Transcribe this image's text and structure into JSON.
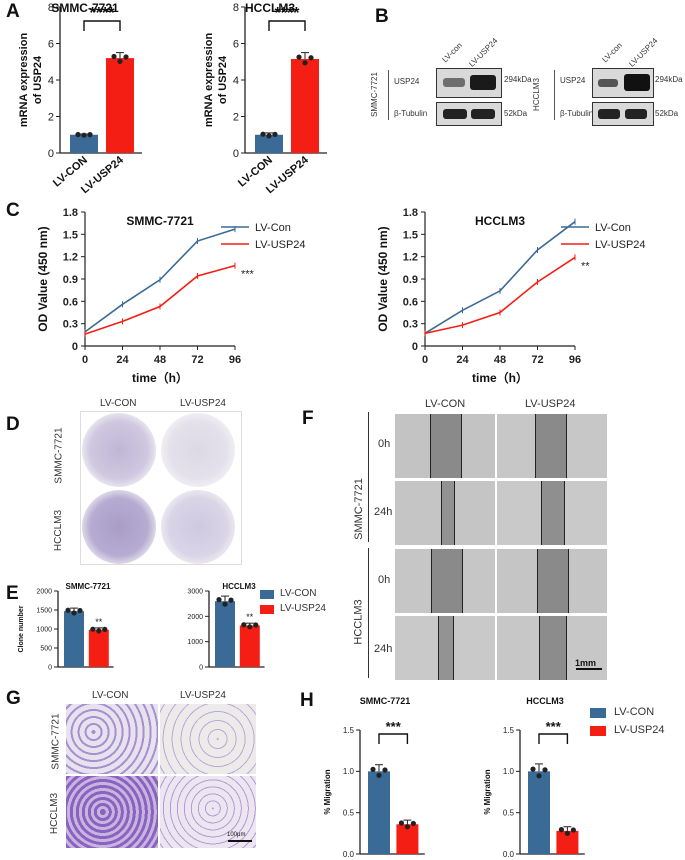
{
  "panels": {
    "A": "A",
    "B": "B",
    "C": "C",
    "D": "D",
    "E": "E",
    "F": "F",
    "G": "G",
    "H": "H"
  },
  "colors": {
    "con": "#3a6a96",
    "usp": "#f41e14"
  },
  "panelA": {
    "ylabel_line1": "mRNA expression",
    "ylabel_line2": "of USP24",
    "sig": "****",
    "yticks": [
      "0",
      "2",
      "4",
      "6",
      "8"
    ],
    "charts": [
      {
        "title": "SMMC-7721",
        "categories": [
          "LV-CON",
          "LV-USP24"
        ],
        "values": [
          1.0,
          5.2
        ],
        "err": [
          0.04,
          0.3
        ],
        "ylim": [
          0,
          8
        ]
      },
      {
        "title": "HCCLM3",
        "categories": [
          "LV-CON",
          "LV-USP24"
        ],
        "values": [
          1.0,
          5.15
        ],
        "err": [
          0.1,
          0.35
        ],
        "ylim": [
          0,
          8
        ]
      }
    ]
  },
  "panelB": {
    "blots": [
      {
        "cell": "SMMC-7721",
        "lanes": [
          "LV-con",
          "LV-USP24"
        ],
        "rows": [
          {
            "protein": "USP24",
            "kda": "294kDa"
          },
          {
            "protein": "β-Tubulin",
            "kda": "52kDa"
          }
        ]
      },
      {
        "cell": "HCCLM3",
        "lanes": [
          "LV-con",
          "LV-USP24"
        ],
        "rows": [
          {
            "protein": "USP24",
            "kda": "294kDa"
          },
          {
            "protein": "β-Tubulin",
            "kda": "52kDa"
          }
        ]
      }
    ]
  },
  "panelC": {
    "xlabel": "time（h）",
    "ylabel": "OD Value (450 nm)",
    "legend": [
      "LV-Con",
      "LV-USP24"
    ],
    "charts": [
      {
        "title": "SMMC-7721",
        "type": "line",
        "x": [
          0,
          24,
          48,
          72,
          96
        ],
        "xticks": [
          "0",
          "24",
          "48",
          "72",
          "96"
        ],
        "yticks": [
          "0",
          "0.3",
          "0.6",
          "0.9",
          "1.2",
          "1.5",
          "1.8"
        ],
        "ylim": [
          0,
          1.8
        ],
        "series": [
          {
            "name": "LV-Con",
            "values": [
              0.19,
              0.56,
              0.89,
              1.41,
              1.57
            ]
          },
          {
            "name": "LV-USP24",
            "values": [
              0.16,
              0.33,
              0.53,
              0.94,
              1.08
            ]
          }
        ],
        "sig": "***"
      },
      {
        "title": "HCCLM3",
        "type": "line",
        "x": [
          0,
          24,
          48,
          72,
          96
        ],
        "xticks": [
          "0",
          "24",
          "48",
          "72",
          "96"
        ],
        "yticks": [
          "0",
          "0.3",
          "0.6",
          "0.9",
          "1.2",
          "1.5",
          "1.8"
        ],
        "ylim": [
          0,
          1.8
        ],
        "series": [
          {
            "name": "LV-Con",
            "values": [
              0.17,
              0.48,
              0.74,
              1.29,
              1.67
            ]
          },
          {
            "name": "LV-USP24",
            "values": [
              0.17,
              0.28,
              0.45,
              0.86,
              1.19
            ]
          }
        ],
        "sig": "**"
      }
    ]
  },
  "panelD": {
    "cols": [
      "LV-CON",
      "LV-USP24"
    ],
    "rows": [
      "SMMC-7721",
      "HCCLM3"
    ]
  },
  "panelE": {
    "ylabel": "Clone number",
    "legend": [
      "LV-CON",
      "LV-USP24"
    ],
    "charts": [
      {
        "title": "SMMC-7721",
        "categories": [
          "LV-CON",
          "LV-USP24"
        ],
        "values": [
          1470,
          980
        ],
        "err": [
          80,
          50
        ],
        "yticks": [
          "0",
          "500",
          "1000",
          "1500",
          "2000"
        ],
        "ylim": [
          0,
          2000
        ],
        "sig": "**"
      },
      {
        "title": "HCCLM3",
        "categories": [
          "LV-CON",
          "LV-USP24"
        ],
        "values": [
          2600,
          1640
        ],
        "err": [
          200,
          90
        ],
        "yticks": [
          "0",
          "1000",
          "2000",
          "3000"
        ],
        "ylim": [
          0,
          3000
        ],
        "sig": "**"
      }
    ]
  },
  "panelF": {
    "cols": [
      "LV-CON",
      "LV-USP24"
    ],
    "cells": [
      "SMMC-7721",
      "HCCLM3"
    ],
    "times": [
      "0h",
      "24h",
      "0h",
      "24h"
    ],
    "scale": "1mm"
  },
  "panelG": {
    "cols": [
      "LV-CON",
      "LV-USP24"
    ],
    "rows": [
      "SMMC-7721",
      "HCCLM3"
    ],
    "scale": "100μm"
  },
  "panelH": {
    "ylabel": "% Migration",
    "sig": "***",
    "legend": [
      "LV-CON",
      "LV-USP24"
    ],
    "yticks": [
      "0.0",
      "0.5",
      "1.0",
      "1.5"
    ],
    "charts": [
      {
        "title": "SMMC-7721",
        "categories": [
          "LV-CON",
          "LV-USP24"
        ],
        "values": [
          1.0,
          0.36
        ],
        "err": [
          0.08,
          0.05
        ],
        "ylim": [
          0,
          1.5
        ]
      },
      {
        "title": "HCCLM3",
        "categories": [
          "LV-CON",
          "LV-USP24"
        ],
        "values": [
          1.0,
          0.28
        ],
        "err": [
          0.09,
          0.05
        ],
        "ylim": [
          0,
          1.5
        ]
      }
    ]
  },
  "chart_data": [
    {
      "type": "bar",
      "title": "SMMC-7721",
      "categories": [
        "LV-CON",
        "LV-USP24"
      ],
      "values": [
        1.0,
        5.2
      ],
      "ylabel": "mRNA expression of USP24",
      "ylim": [
        0,
        8
      ]
    },
    {
      "type": "bar",
      "title": "HCCLM3",
      "categories": [
        "LV-CON",
        "LV-USP24"
      ],
      "values": [
        1.0,
        5.15
      ],
      "ylabel": "mRNA expression of USP24",
      "ylim": [
        0,
        8
      ]
    },
    {
      "type": "line",
      "title": "SMMC-7721",
      "x": [
        0,
        24,
        48,
        72,
        96
      ],
      "series": [
        {
          "name": "LV-Con",
          "values": [
            0.19,
            0.56,
            0.89,
            1.41,
            1.57
          ]
        },
        {
          "name": "LV-USP24",
          "values": [
            0.16,
            0.33,
            0.53,
            0.94,
            1.08
          ]
        }
      ],
      "xlabel": "time（h）",
      "ylabel": "OD Value (450 nm)",
      "ylim": [
        0,
        1.8
      ]
    },
    {
      "type": "line",
      "title": "HCCLM3",
      "x": [
        0,
        24,
        48,
        72,
        96
      ],
      "series": [
        {
          "name": "LV-Con",
          "values": [
            0.17,
            0.48,
            0.74,
            1.29,
            1.67
          ]
        },
        {
          "name": "LV-USP24",
          "values": [
            0.17,
            0.28,
            0.45,
            0.86,
            1.19
          ]
        }
      ],
      "xlabel": "time（h）",
      "ylabel": "OD Value (450 nm)",
      "ylim": [
        0,
        1.8
      ]
    },
    {
      "type": "bar",
      "title": "SMMC-7721",
      "categories": [
        "LV-CON",
        "LV-USP24"
      ],
      "values": [
        1470,
        980
      ],
      "ylabel": "Clone number",
      "ylim": [
        0,
        2000
      ]
    },
    {
      "type": "bar",
      "title": "HCCLM3",
      "categories": [
        "LV-CON",
        "LV-USP24"
      ],
      "values": [
        2600,
        1640
      ],
      "ylabel": "Clone number",
      "ylim": [
        0,
        3000
      ]
    },
    {
      "type": "bar",
      "title": "SMMC-7721",
      "categories": [
        "LV-CON",
        "LV-USP24"
      ],
      "values": [
        1.0,
        0.36
      ],
      "ylabel": "% Migration",
      "ylim": [
        0,
        1.5
      ]
    },
    {
      "type": "bar",
      "title": "HCCLM3",
      "categories": [
        "LV-CON",
        "LV-USP24"
      ],
      "values": [
        1.0,
        0.28
      ],
      "ylabel": "% Migration",
      "ylim": [
        0,
        1.5
      ]
    }
  ]
}
